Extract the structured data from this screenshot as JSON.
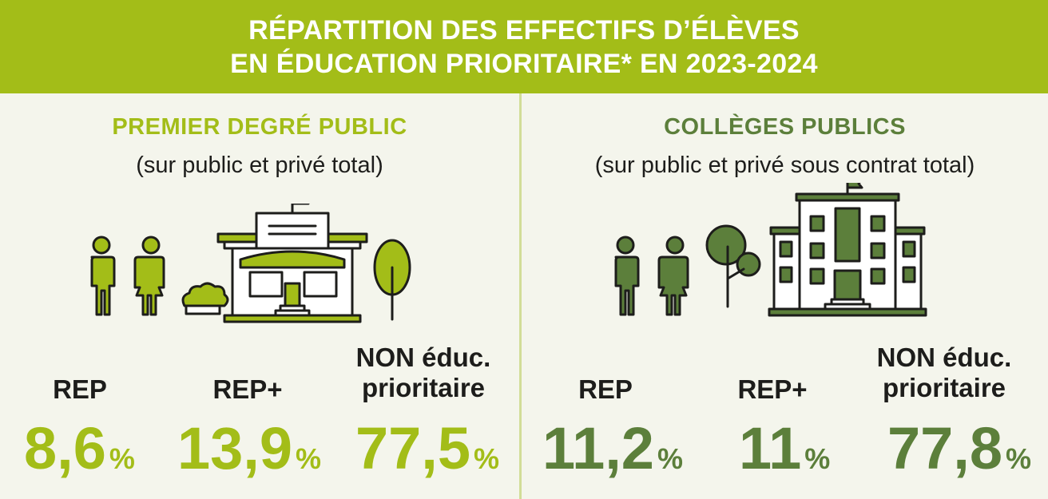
{
  "header": {
    "line1": "RÉPARTITION DES EFFECTIFS D’ÉLÈVES",
    "line2": "EN ÉDUCATION PRIORITAIRE* EN 2023-2024"
  },
  "colors": {
    "header_bg": "#a3bd18",
    "light_green": "#a3bd18",
    "dark_green": "#5c7f3b",
    "background": "#f4f5ec"
  },
  "left": {
    "title": "PREMIER DEGRÉ PUBLIC",
    "subtitle": "(sur public et privé total)",
    "illustration": "school-people-tree-icon",
    "stats": [
      {
        "label_line1": "REP",
        "label_line2": "",
        "value": "8,6",
        "unit": "%"
      },
      {
        "label_line1": "REP+",
        "label_line2": "",
        "value": "13,9",
        "unit": "%"
      },
      {
        "label_line1": "NON éduc.",
        "label_line2": "prioritaire",
        "value": "77,5",
        "unit": "%"
      }
    ]
  },
  "right": {
    "title": "COLLÈGES PUBLICS",
    "subtitle": "(sur public et privé sous contrat total)",
    "illustration": "college-people-tree-icon",
    "stats": [
      {
        "label_line1": "REP",
        "label_line2": "",
        "value": "11,2",
        "unit": "%"
      },
      {
        "label_line1": "REP+",
        "label_line2": "",
        "value": "11",
        "unit": "%"
      },
      {
        "label_line1": "NON éduc.",
        "label_line2": "prioritaire",
        "value": "77,8",
        "unit": "%"
      }
    ]
  }
}
